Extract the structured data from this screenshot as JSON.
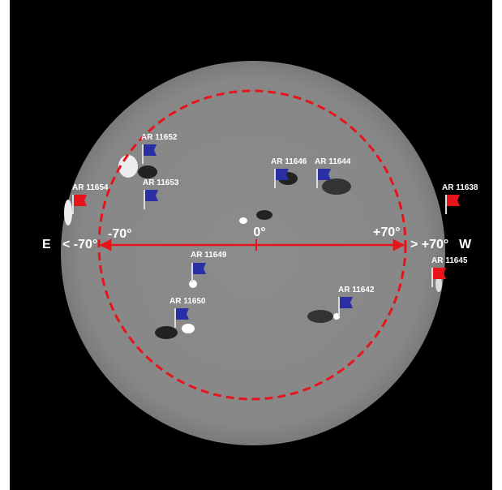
{
  "axis_labels": {
    "east": "E",
    "west": "W",
    "east_limit": "< -70°",
    "west_limit": "> +70°",
    "minus_70": "-70°",
    "zero": "0°",
    "plus_70": "+70°"
  },
  "regions": [
    "AR 11652",
    "AR 11653",
    "AR 11654",
    "AR 11646",
    "AR 11644",
    "AR 11638",
    "AR 11645",
    "AR 11649",
    "AR 11650",
    "AR 11642"
  ]
}
